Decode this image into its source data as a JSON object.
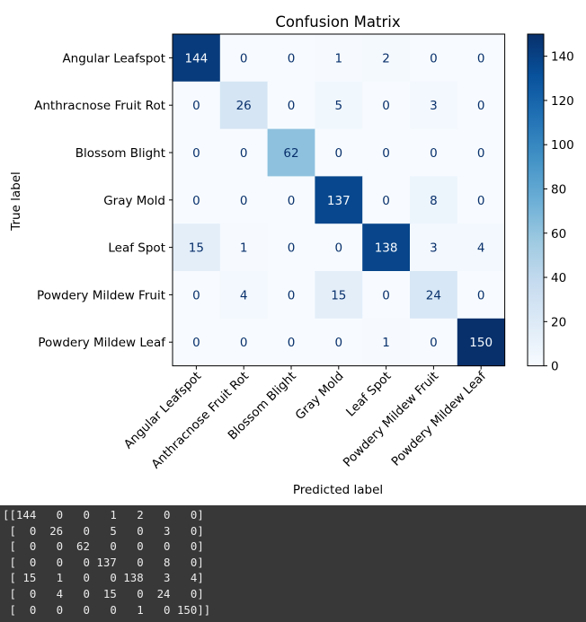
{
  "chart_data": {
    "type": "heatmap",
    "title": "Confusion Matrix",
    "xlabel": "Predicted label",
    "ylabel": "True label",
    "labels": [
      "Angular Leafspot",
      "Anthracnose Fruit Rot",
      "Blossom Blight",
      "Gray Mold",
      "Leaf Spot",
      "Powdery Mildew Fruit",
      "Powdery Mildew Leaf"
    ],
    "matrix": [
      [
        144,
        0,
        0,
        1,
        2,
        0,
        0
      ],
      [
        0,
        26,
        0,
        5,
        0,
        3,
        0
      ],
      [
        0,
        0,
        62,
        0,
        0,
        0,
        0
      ],
      [
        0,
        0,
        0,
        137,
        0,
        8,
        0
      ],
      [
        15,
        1,
        0,
        0,
        138,
        3,
        4
      ],
      [
        0,
        4,
        0,
        15,
        0,
        24,
        0
      ],
      [
        0,
        0,
        0,
        0,
        1,
        0,
        150
      ]
    ],
    "colormap": "Blues",
    "colorbar": {
      "min": 0,
      "max": 150,
      "ticks": [
        0,
        20,
        40,
        60,
        80,
        100,
        120,
        140
      ]
    },
    "colors": {
      "cmap_low": "#f7fbff",
      "cmap_high": "#08306b",
      "text_light": "#f7fbff",
      "text_dark": "#08306b"
    }
  },
  "console": {
    "lines": [
      "[[144   0   0   1   2   0   0]",
      " [  0  26   0   5   0   3   0]",
      " [  0   0  62   0   0   0   0]",
      " [  0   0   0 137   0   8   0]",
      " [ 15   1   0   0 138   3   4]",
      " [  0   4   0  15   0  24   0]",
      " [  0   0   0   0   1   0 150]]"
    ]
  }
}
